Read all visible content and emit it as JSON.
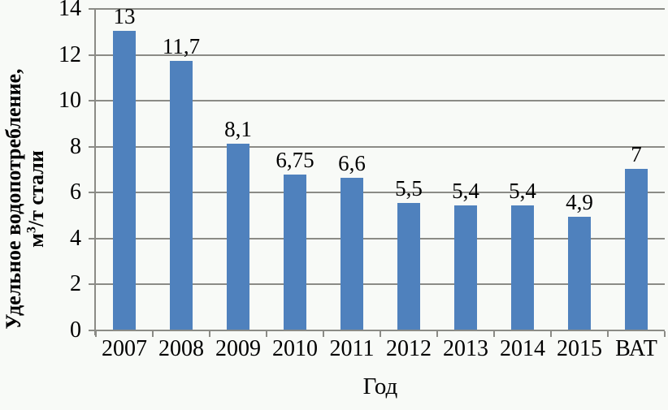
{
  "chart_data": {
    "type": "bar",
    "title": "",
    "categories": [
      "2007",
      "2008",
      "2009",
      "2010",
      "2011",
      "2012",
      "2013",
      "2014",
      "2015",
      "ВАТ"
    ],
    "values": [
      13,
      11.7,
      8.1,
      6.75,
      6.6,
      5.5,
      5.4,
      5.4,
      4.9,
      7
    ],
    "value_labels": [
      "13",
      "11,7",
      "8,1",
      "6,75",
      "6,6",
      "5,5",
      "5,4",
      "5,4",
      "4,9",
      "7"
    ],
    "xlabel": "Год",
    "ylabel": "Удельное водопотребление, м³/т стали",
    "ylabel_line1": "Удельное водопотребление,",
    "ylabel_unit_base": "м",
    "ylabel_unit_sup": "3",
    "ylabel_unit_rest": "/т стали",
    "ylim": [
      0,
      14
    ],
    "ytick_interval": 2,
    "yticks": [
      "0",
      "2",
      "4",
      "6",
      "8",
      "10",
      "12",
      "14"
    ],
    "grid": "horizontal-major-only",
    "legend": "none",
    "colors": {
      "bar": "#4f81bd",
      "gridline": "#8b8b86",
      "axis": "#8b8b86",
      "text": "#000000",
      "background": "#f8faf7"
    }
  }
}
